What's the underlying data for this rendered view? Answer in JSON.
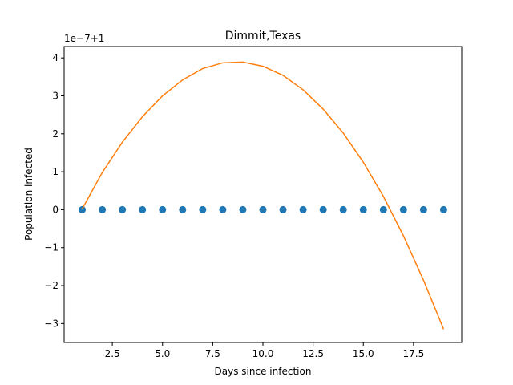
{
  "chart_data": {
    "type": "scatter",
    "title": "Dimmit,Texas",
    "xlabel": "Days since infection",
    "ylabel": "Population infected",
    "offset_label": "1e−7+1",
    "xlim": [
      0.1,
      19.9
    ],
    "ylim": [
      -3.5,
      4.3
    ],
    "xticks": [
      2.5,
      5.0,
      7.5,
      10.0,
      12.5,
      15.0,
      17.5
    ],
    "xtick_labels": [
      "2.5",
      "5.0",
      "7.5",
      "10.0",
      "12.5",
      "15.0",
      "17.5"
    ],
    "yticks": [
      -3,
      -2,
      -1,
      0,
      1,
      2,
      3,
      4
    ],
    "ytick_labels": [
      "−3",
      "−2",
      "−1",
      "0",
      "1",
      "2",
      "3",
      "4"
    ],
    "grid": false,
    "series": [
      {
        "kind": "scatter",
        "color": "#1f77b4",
        "x": [
          1,
          2,
          3,
          4,
          5,
          6,
          7,
          8,
          9,
          10,
          11,
          12,
          13,
          14,
          15,
          16,
          17,
          18,
          19
        ],
        "y": [
          0,
          0,
          0,
          0,
          0,
          0,
          0,
          0,
          0,
          0,
          0,
          0,
          0,
          0,
          0,
          0,
          0,
          0,
          0
        ]
      },
      {
        "kind": "line",
        "color": "#ff7f0e",
        "x": [
          1,
          2,
          3,
          4,
          5,
          6,
          7,
          8,
          9,
          10,
          11,
          12,
          13,
          14,
          15,
          16,
          17,
          18,
          19
        ],
        "y": [
          0.02,
          0.98,
          1.78,
          2.45,
          3.0,
          3.42,
          3.72,
          3.87,
          3.89,
          3.78,
          3.54,
          3.16,
          2.65,
          2.02,
          1.25,
          0.35,
          -0.69,
          -1.86,
          -3.15
        ]
      }
    ]
  }
}
